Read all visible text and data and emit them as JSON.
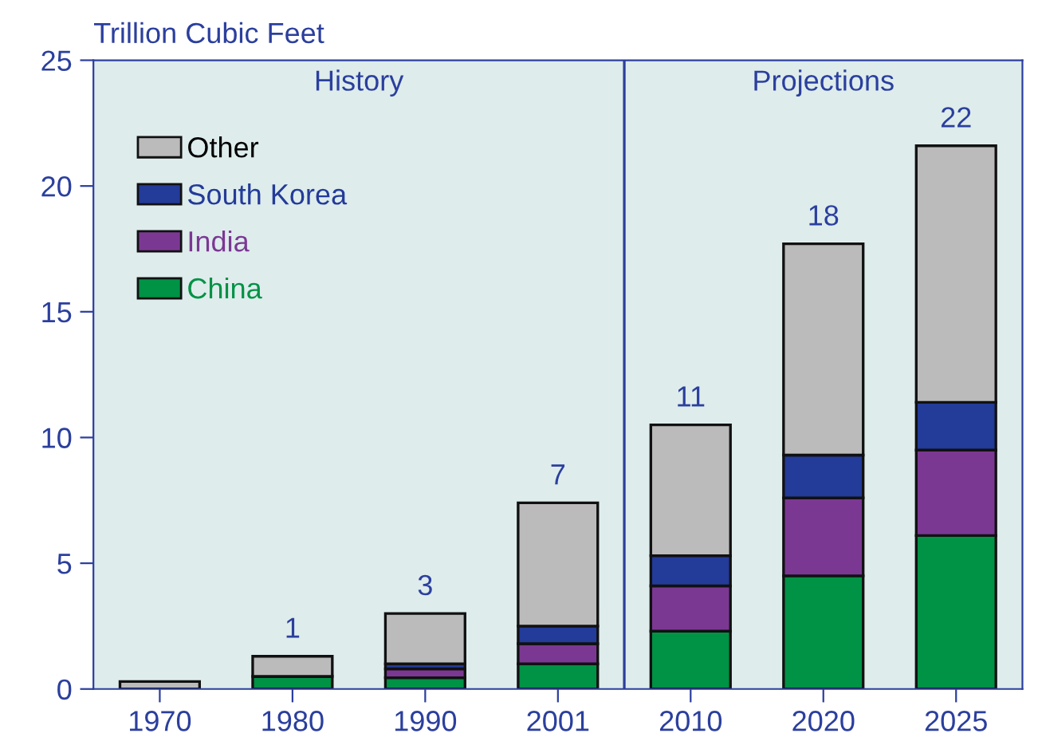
{
  "chart_data": {
    "type": "bar",
    "stacked": true,
    "ylabel": "Trillion Cubic Feet",
    "categories": [
      "1970",
      "1980",
      "1990",
      "2001",
      "2010",
      "2020",
      "2025"
    ],
    "series": [
      {
        "name": "China",
        "color": "#009245",
        "values": [
          null,
          0.5,
          0.45,
          1.0,
          2.3,
          4.5,
          6.1
        ]
      },
      {
        "name": "India",
        "color": "#7b3893",
        "values": [
          0,
          0,
          0.35,
          0.8,
          1.8,
          3.1,
          3.4
        ]
      },
      {
        "name": "South Korea",
        "color": "#233b99",
        "values": [
          0,
          0,
          0.2,
          0.7,
          1.2,
          1.7,
          1.9
        ]
      },
      {
        "name": "Other",
        "color": "#bbbbbb",
        "values": [
          0.3,
          0.8,
          2.0,
          4.9,
          5.2,
          8.4,
          10.2
        ]
      }
    ],
    "totals": [
      null,
      "1",
      "3",
      "7",
      "11",
      "18",
      "22"
    ],
    "ylim": [
      0,
      25
    ],
    "yticks": [
      0,
      5,
      10,
      15,
      20,
      25
    ],
    "grid": false,
    "legend": "top left",
    "bands": [
      {
        "axis": "x",
        "from": "1970",
        "to": "2001",
        "label": "History",
        "color": "#deecec"
      },
      {
        "axis": "x",
        "from": "2010",
        "to": "2025",
        "label": "Projections",
        "color": "#deecec"
      }
    ]
  }
}
